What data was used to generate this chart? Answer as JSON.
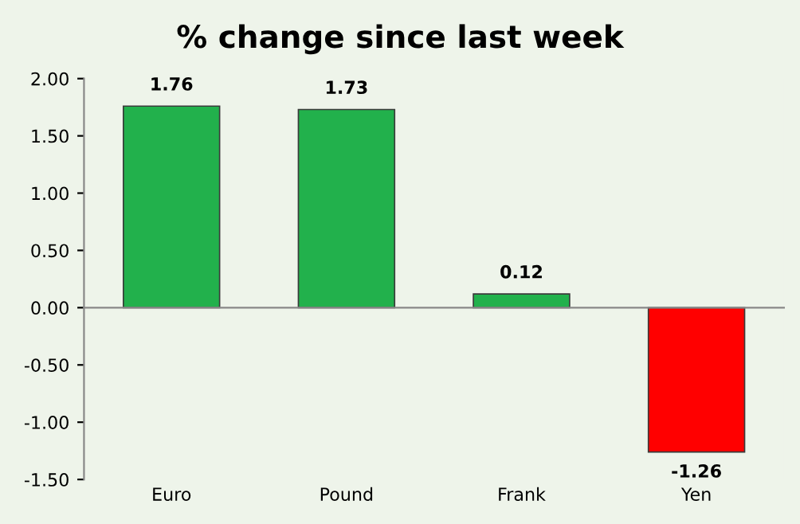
{
  "chart_data": {
    "type": "bar",
    "title": "% change since last week",
    "categories": [
      "Euro",
      "Pound",
      "Frank",
      "Yen"
    ],
    "values": [
      1.76,
      1.73,
      0.12,
      -1.26
    ],
    "colors": [
      "#22b14c",
      "#22b14c",
      "#22b14c",
      "#ff0000"
    ],
    "ylim": [
      -1.5,
      2.0
    ],
    "yticks": [
      {
        "value": -1.5,
        "label": "-1.50"
      },
      {
        "value": -1.0,
        "label": "-1.00"
      },
      {
        "value": -0.5,
        "label": "-0.50"
      },
      {
        "value": 0.0,
        "label": "0.00"
      },
      {
        "value": 0.5,
        "label": "0.50"
      },
      {
        "value": 1.0,
        "label": "1.00"
      },
      {
        "value": 1.5,
        "label": "1.50"
      },
      {
        "value": 2.0,
        "label": "2.00"
      }
    ],
    "data_labels": true
  }
}
